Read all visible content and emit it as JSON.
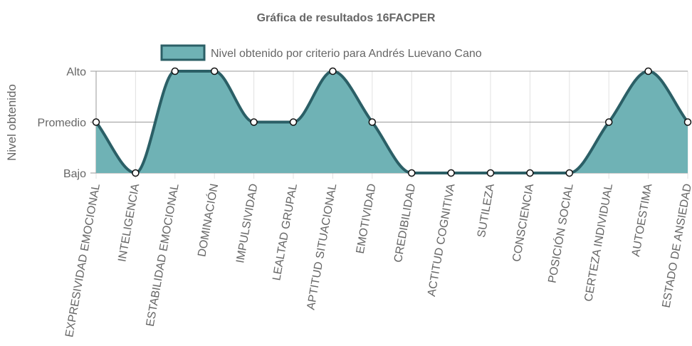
{
  "chart_data": {
    "type": "area",
    "title": "Gráfica de resultados 16FACPER",
    "ylabel": "Nivel obtenido",
    "xlabel": "",
    "y_categories": [
      "Bajo",
      "Promedio",
      "Alto"
    ],
    "categories": [
      "EXPRESIVIDAD EMOCIONAL",
      "INTELIGENCIA",
      "ESTABILIDAD EMOCIONAL",
      "DOMINACIÓN",
      "IMPULSIVIDAD",
      "LEALTAD GRUPAL",
      "APTITUD SITUACIONAL",
      "EMOTIVIDAD",
      "CREDIBILIDAD",
      "ACTITUD COGNITIVA",
      "SUTILEZA",
      "CONSCIENCIA",
      "POSICIÓN SOCIAL",
      "CERTEZA INDIVIDUAL",
      "AUTOESTIMA",
      "ESTADO DE ANSIEDAD"
    ],
    "series": [
      {
        "name": "Nivel obtenido por criterio para Andrés Luevano Cano",
        "values": [
          "Promedio",
          "Bajo",
          "Alto",
          "Alto",
          "Promedio",
          "Promedio",
          "Alto",
          "Promedio",
          "Bajo",
          "Bajo",
          "Bajo",
          "Bajo",
          "Bajo",
          "Promedio",
          "Alto",
          "Promedio"
        ],
        "fill_color": "#6fb2b5",
        "line_color": "#2b5f66"
      }
    ],
    "legend_position": "top",
    "grid": true
  }
}
